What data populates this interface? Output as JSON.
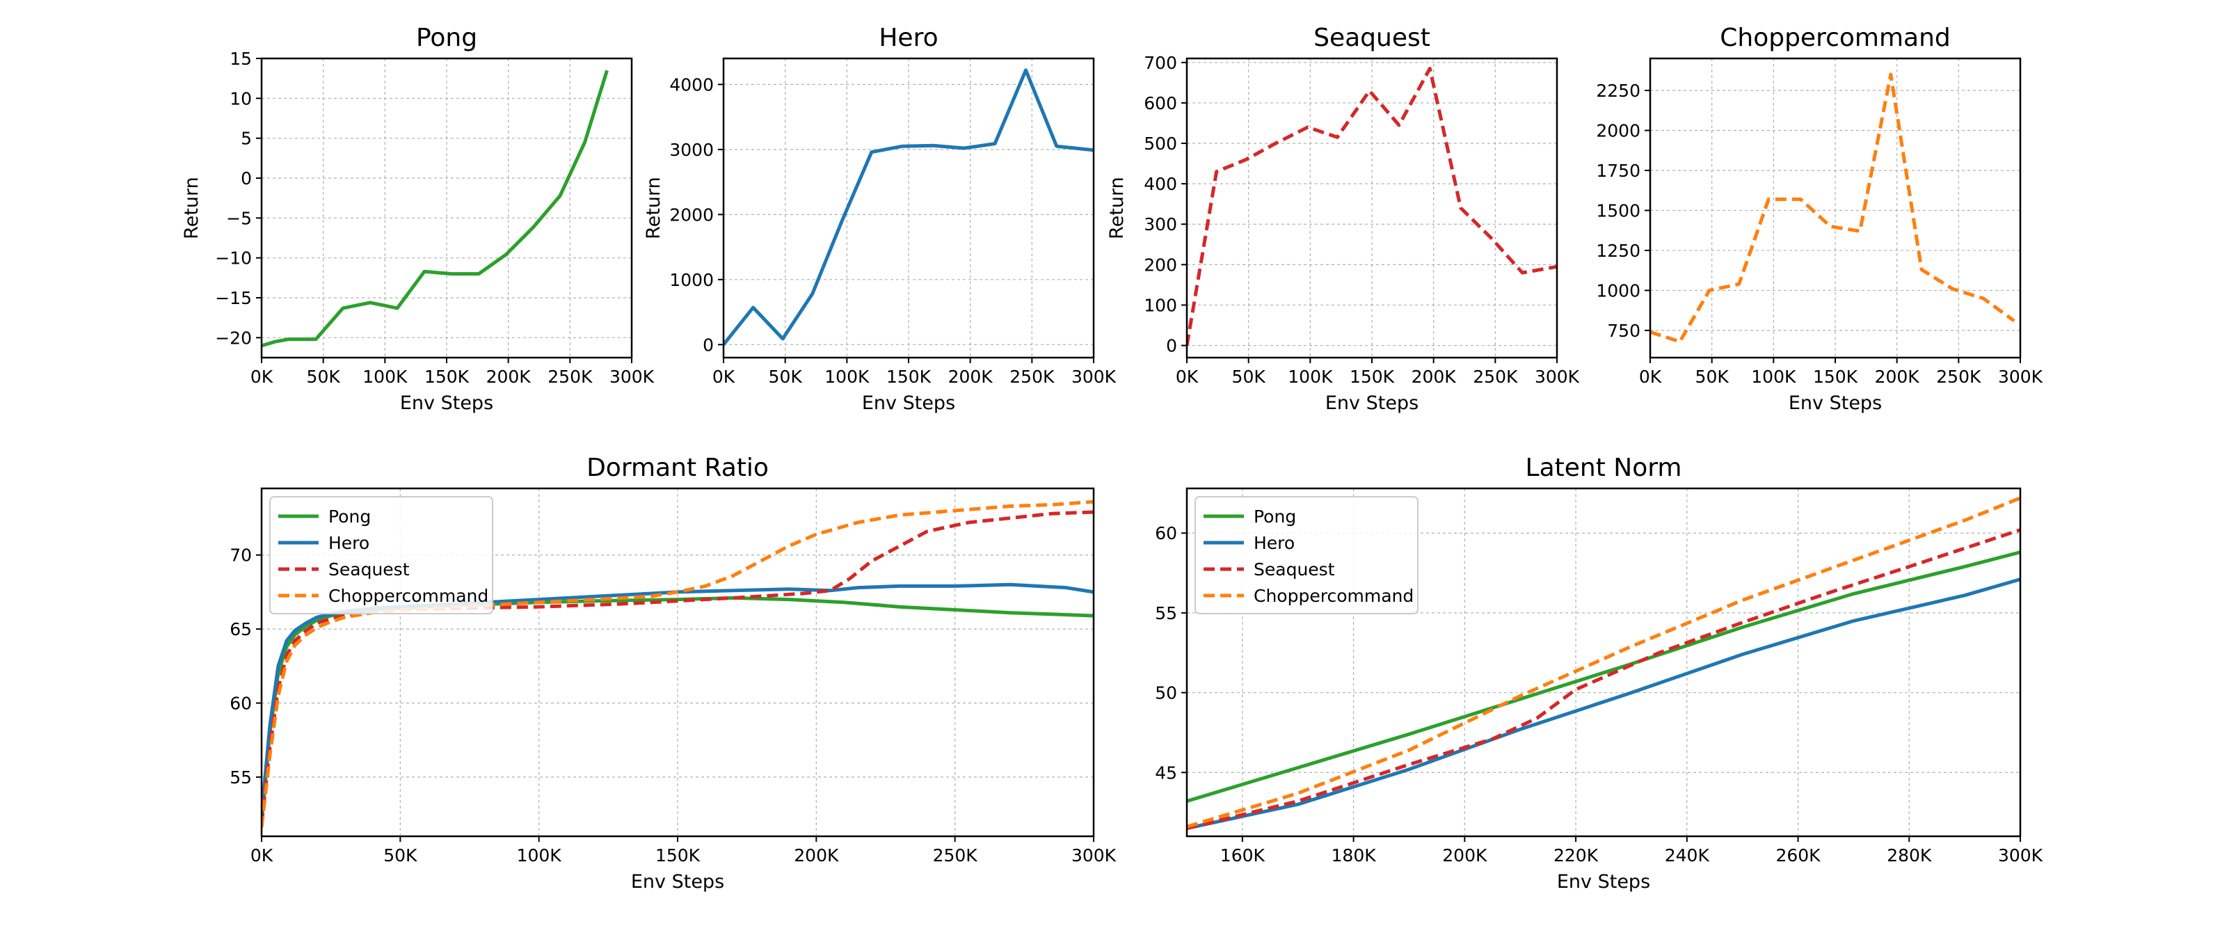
{
  "chart_data": [
    {
      "id": "pong",
      "type": "line",
      "title": "Pong",
      "xlabel": "Env Steps",
      "ylabel": "Return",
      "xlim": [
        0,
        300000
      ],
      "ylim": [
        -22.5,
        15
      ],
      "xticks": [
        0,
        50000,
        100000,
        150000,
        200000,
        250000,
        300000
      ],
      "xtick_labels": [
        "0K",
        "50K",
        "100K",
        "150K",
        "200K",
        "250K",
        "300K"
      ],
      "yticks": [
        -20,
        -15,
        -10,
        -5,
        0,
        5,
        10,
        15
      ],
      "ytick_labels": [
        "−20",
        "−15",
        "−10",
        "−5",
        "0",
        "5",
        "10",
        "15"
      ],
      "grid": true,
      "series": [
        {
          "color": "#2ca02c",
          "dash": "solid",
          "x": [
            0,
            11000,
            22000,
            44000,
            66000,
            88000,
            110000,
            132000,
            154000,
            176000,
            198000,
            220000,
            242000,
            262000,
            280000
          ],
          "y": [
            -21,
            -20.5,
            -20.2,
            -20.2,
            -16.3,
            -15.6,
            -16.3,
            -11.7,
            -12,
            -12,
            -9.6,
            -6.2,
            -2.2,
            4.5,
            13.5
          ]
        }
      ]
    },
    {
      "id": "hero",
      "type": "line",
      "title": "Hero",
      "xlabel": "Env Steps",
      "ylabel": "Return",
      "xlim": [
        0,
        300000
      ],
      "ylim": [
        -200,
        4400
      ],
      "xticks": [
        0,
        50000,
        100000,
        150000,
        200000,
        250000,
        300000
      ],
      "xtick_labels": [
        "0K",
        "50K",
        "100K",
        "150K",
        "200K",
        "250K",
        "300K"
      ],
      "yticks": [
        0,
        1000,
        2000,
        3000,
        4000
      ],
      "ytick_labels": [
        "0",
        "1000",
        "2000",
        "3000",
        "4000"
      ],
      "grid": true,
      "series": [
        {
          "color": "#1f77b4",
          "dash": "solid",
          "x": [
            0,
            24000,
            48000,
            72000,
            96000,
            120000,
            145000,
            170000,
            195000,
            220000,
            245000,
            270000,
            300000
          ],
          "y": [
            0,
            570,
            90,
            780,
            1900,
            2960,
            3050,
            3060,
            3020,
            3090,
            4220,
            3050,
            2990
          ]
        }
      ]
    },
    {
      "id": "seaquest",
      "type": "line",
      "title": "Seaquest",
      "xlabel": "Env Steps",
      "ylabel": "Return",
      "xlim": [
        0,
        300000
      ],
      "ylim": [
        -30,
        710
      ],
      "xticks": [
        0,
        50000,
        100000,
        150000,
        200000,
        250000,
        300000
      ],
      "xtick_labels": [
        "0K",
        "50K",
        "100K",
        "150K",
        "200K",
        "250K",
        "300K"
      ],
      "yticks": [
        0,
        100,
        200,
        300,
        400,
        500,
        600,
        700
      ],
      "ytick_labels": [
        "0",
        "100",
        "200",
        "300",
        "400",
        "500",
        "600",
        "700"
      ],
      "grid": true,
      "series": [
        {
          "color": "#d62728",
          "dash": "dashed",
          "x": [
            0,
            24000,
            48000,
            72000,
            98000,
            122000,
            148000,
            172000,
            197000,
            222000,
            247000,
            272000,
            300000
          ],
          "y": [
            0,
            430,
            460,
            500,
            540,
            515,
            630,
            545,
            685,
            340,
            265,
            180,
            195
          ]
        }
      ]
    },
    {
      "id": "choppercommand",
      "type": "line",
      "title": "Choppercommand",
      "xlabel": "Env Steps",
      "ylabel": "",
      "xlim": [
        0,
        300000
      ],
      "ylim": [
        580,
        2450
      ],
      "xticks": [
        0,
        50000,
        100000,
        150000,
        200000,
        250000,
        300000
      ],
      "xtick_labels": [
        "0K",
        "50K",
        "100K",
        "150K",
        "200K",
        "250K",
        "300K"
      ],
      "yticks": [
        750,
        1000,
        1250,
        1500,
        1750,
        2000,
        2250
      ],
      "ytick_labels": [
        "750",
        "1000",
        "1250",
        "1500",
        "1750",
        "2000",
        "2250"
      ],
      "grid": true,
      "series": [
        {
          "color": "#ff7f0e",
          "dash": "dashed",
          "x": [
            0,
            24000,
            48000,
            72000,
            96000,
            122000,
            146000,
            170000,
            195000,
            220000,
            245000,
            270000,
            295000
          ],
          "y": [
            740,
            680,
            1000,
            1040,
            1570,
            1570,
            1400,
            1370,
            2350,
            1130,
            1010,
            950,
            810
          ]
        }
      ]
    },
    {
      "id": "dormant",
      "type": "line",
      "title": "Dormant Ratio",
      "xlabel": "Env Steps",
      "ylabel": "",
      "xlim": [
        0,
        300000
      ],
      "ylim": [
        51,
        74.5
      ],
      "xticks": [
        0,
        50000,
        100000,
        150000,
        200000,
        250000,
        300000
      ],
      "xtick_labels": [
        "0K",
        "50K",
        "100K",
        "150K",
        "200K",
        "250K",
        "300K"
      ],
      "yticks": [
        55,
        60,
        65,
        70
      ],
      "ytick_labels": [
        "55",
        "60",
        "65",
        "70"
      ],
      "grid": true,
      "legend": "upper-left",
      "series": [
        {
          "name": "Pong",
          "color": "#2ca02c",
          "dash": "solid",
          "x": [
            0,
            3000,
            6000,
            9000,
            12000,
            16000,
            20000,
            25000,
            30000,
            40000,
            50000,
            70000,
            100000,
            120000,
            150000,
            170000,
            190000,
            210000,
            230000,
            250000,
            270000,
            300000
          ],
          "y": [
            52,
            58,
            62,
            63.8,
            64.6,
            65.2,
            65.6,
            65.9,
            66.1,
            66.3,
            66.4,
            66.6,
            66.8,
            66.9,
            67,
            67.1,
            67,
            66.8,
            66.5,
            66.3,
            66.1,
            65.9
          ]
        },
        {
          "name": "Hero",
          "color": "#1f77b4",
          "dash": "solid",
          "x": [
            0,
            3000,
            6000,
            9000,
            12000,
            16000,
            20000,
            25000,
            30000,
            40000,
            50000,
            70000,
            100000,
            130000,
            150000,
            170000,
            190000,
            205000,
            215000,
            230000,
            250000,
            270000,
            290000,
            300000
          ],
          "y": [
            52.5,
            58.5,
            62.5,
            64.2,
            64.9,
            65.4,
            65.8,
            66,
            66.2,
            66.4,
            66.5,
            66.7,
            67,
            67.3,
            67.5,
            67.6,
            67.7,
            67.6,
            67.8,
            67.9,
            67.9,
            68,
            67.8,
            67.5
          ]
        },
        {
          "name": "Seaquest",
          "color": "#d62728",
          "dash": "dashed",
          "x": [
            0,
            3000,
            6000,
            9000,
            12000,
            16000,
            20000,
            25000,
            30000,
            40000,
            50000,
            70000,
            100000,
            130000,
            150000,
            170000,
            195000,
            205000,
            212000,
            220000,
            230000,
            240000,
            255000,
            270000,
            285000,
            300000
          ],
          "y": [
            51.8,
            57,
            61,
            63.2,
            64.2,
            64.9,
            65.4,
            65.7,
            65.9,
            66.1,
            66.3,
            66.4,
            66.5,
            66.7,
            66.9,
            67.1,
            67.4,
            67.6,
            68.4,
            69.6,
            70.6,
            71.6,
            72.2,
            72.5,
            72.8,
            72.9
          ]
        },
        {
          "name": "Choppercommand",
          "color": "#ff7f0e",
          "dash": "dashed",
          "x": [
            0,
            3000,
            6000,
            9000,
            12000,
            16000,
            20000,
            25000,
            30000,
            40000,
            50000,
            70000,
            100000,
            120000,
            140000,
            150000,
            160000,
            170000,
            180000,
            190000,
            200000,
            215000,
            230000,
            250000,
            270000,
            285000,
            300000
          ],
          "y": [
            51.6,
            56.5,
            60.5,
            62.8,
            63.9,
            64.6,
            65.1,
            65.5,
            65.8,
            66.1,
            66.3,
            66.5,
            66.8,
            67,
            67.2,
            67.5,
            67.9,
            68.6,
            69.6,
            70.6,
            71.4,
            72.2,
            72.7,
            73,
            73.3,
            73.4,
            73.6
          ]
        }
      ]
    },
    {
      "id": "latent",
      "type": "line",
      "title": "Latent Norm",
      "xlabel": "Env Steps",
      "ylabel": "",
      "xlim": [
        150000,
        300000
      ],
      "ylim": [
        41,
        62.8
      ],
      "xticks": [
        160000,
        180000,
        200000,
        220000,
        240000,
        260000,
        280000,
        300000
      ],
      "xtick_labels": [
        "160K",
        "180K",
        "200K",
        "220K",
        "240K",
        "260K",
        "280K",
        "300K"
      ],
      "yticks": [
        45,
        50,
        55,
        60
      ],
      "ytick_labels": [
        "45",
        "50",
        "55",
        "60"
      ],
      "grid": true,
      "legend": "upper-left",
      "series": [
        {
          "name": "Pong",
          "color": "#2ca02c",
          "dash": "solid",
          "x": [
            150000,
            170000,
            190000,
            210000,
            230000,
            250000,
            270000,
            290000,
            300000
          ],
          "y": [
            43.2,
            45.3,
            47.4,
            49.6,
            51.8,
            54.1,
            56.2,
            57.9,
            58.8
          ]
        },
        {
          "name": "Hero",
          "color": "#1f77b4",
          "dash": "solid",
          "x": [
            150000,
            170000,
            190000,
            210000,
            230000,
            250000,
            270000,
            290000,
            300000
          ],
          "y": [
            41.5,
            43,
            45.2,
            47.7,
            50,
            52.4,
            54.5,
            56.1,
            57.1
          ]
        },
        {
          "name": "Seaquest",
          "color": "#d62728",
          "dash": "dashed",
          "x": [
            150000,
            170000,
            190000,
            205000,
            213000,
            220000,
            235000,
            250000,
            265000,
            280000,
            300000
          ],
          "y": [
            41.5,
            43.2,
            45.5,
            47.1,
            48.4,
            50.2,
            52.5,
            54.4,
            56.2,
            57.9,
            60.2
          ]
        },
        {
          "name": "Choppercommand",
          "color": "#ff7f0e",
          "dash": "dashed",
          "x": [
            150000,
            170000,
            190000,
            210000,
            230000,
            250000,
            270000,
            290000,
            300000
          ],
          "y": [
            41.6,
            43.7,
            46.4,
            49.8,
            52.9,
            55.8,
            58.3,
            60.8,
            62.2
          ]
        }
      ]
    }
  ]
}
